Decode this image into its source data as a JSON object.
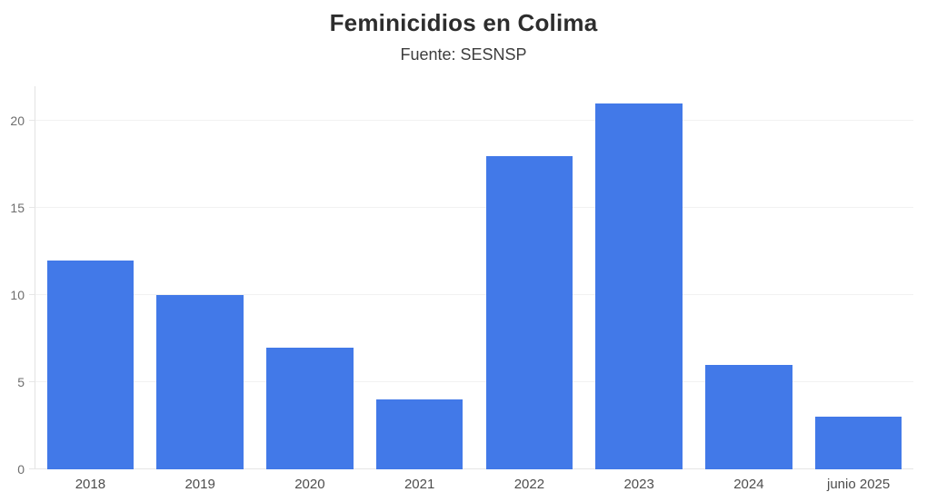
{
  "header": {
    "title": "Feminicidios en Colima",
    "subtitle": "Fuente: SESNSP"
  },
  "chart_data": {
    "type": "bar",
    "title": "Feminicidios en Colima",
    "subtitle": "Fuente: SESNSP",
    "categories": [
      "2018",
      "2019",
      "2020",
      "2021",
      "2022",
      "2023",
      "2024",
      "junio 2025"
    ],
    "values": [
      12,
      10,
      7,
      4,
      18,
      21,
      6,
      3
    ],
    "xlabel": "",
    "ylabel": "",
    "ylim": [
      0,
      22
    ],
    "yticks": [
      0,
      5,
      10,
      15,
      20
    ],
    "grid": true,
    "legend": false,
    "bar_color": "#4279e8"
  },
  "colors": {
    "bar": "#4279e8",
    "title_text": "#2d2d2d",
    "subtitle_text": "#3d3d3d",
    "ytick_text": "#6e6e6e",
    "xtick_text": "#4d4d4d",
    "gridline": "#f2f2f2",
    "axis_line": "#e2e2e2",
    "background": "#ffffff"
  }
}
